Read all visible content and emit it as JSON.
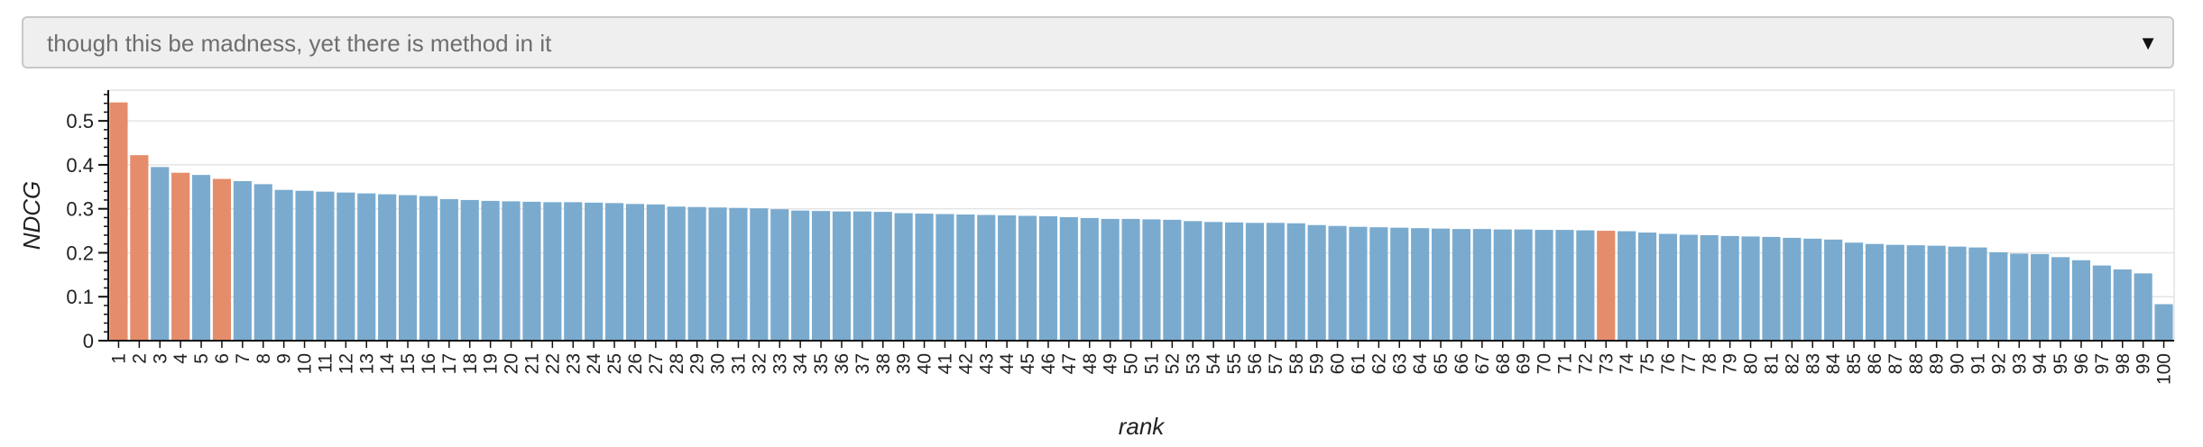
{
  "dropdown": {
    "selected": "though this be madness, yet there is method in it",
    "arrow": "▼"
  },
  "chart_data": {
    "type": "bar",
    "xlabel": "rank",
    "ylabel": "NDCG",
    "ylim": [
      0,
      0.57
    ],
    "yticks": [
      0,
      0.1,
      0.2,
      0.3,
      0.4,
      0.5
    ],
    "ytick_labels": [
      "0",
      "0.1",
      "0.2",
      "0.3",
      "0.4",
      "0.5"
    ],
    "grid": true,
    "colors": {
      "default": "#7aabcf",
      "highlight": "#e58c6a"
    },
    "highlighted_ranks": [
      1,
      2,
      4,
      6,
      73
    ],
    "categories": [
      "1",
      "2",
      "3",
      "4",
      "5",
      "6",
      "7",
      "8",
      "9",
      "10",
      "11",
      "12",
      "13",
      "14",
      "15",
      "16",
      "17",
      "18",
      "19",
      "20",
      "21",
      "22",
      "23",
      "24",
      "25",
      "26",
      "27",
      "28",
      "29",
      "30",
      "31",
      "32",
      "33",
      "34",
      "35",
      "36",
      "37",
      "38",
      "39",
      "40",
      "41",
      "42",
      "43",
      "44",
      "45",
      "46",
      "47",
      "48",
      "49",
      "50",
      "51",
      "52",
      "53",
      "54",
      "55",
      "56",
      "57",
      "58",
      "59",
      "60",
      "61",
      "62",
      "63",
      "64",
      "65",
      "66",
      "67",
      "68",
      "69",
      "70",
      "71",
      "72",
      "73",
      "74",
      "75",
      "76",
      "77",
      "78",
      "79",
      "80",
      "81",
      "82",
      "83",
      "84",
      "85",
      "86",
      "87",
      "88",
      "89",
      "90",
      "91",
      "92",
      "93",
      "94",
      "95",
      "96",
      "97",
      "98",
      "99",
      "100"
    ],
    "values": [
      0.542,
      0.422,
      0.395,
      0.382,
      0.377,
      0.368,
      0.363,
      0.356,
      0.343,
      0.341,
      0.339,
      0.337,
      0.335,
      0.333,
      0.331,
      0.329,
      0.322,
      0.32,
      0.318,
      0.317,
      0.316,
      0.315,
      0.315,
      0.314,
      0.313,
      0.311,
      0.31,
      0.305,
      0.304,
      0.303,
      0.302,
      0.301,
      0.299,
      0.296,
      0.295,
      0.294,
      0.294,
      0.293,
      0.29,
      0.289,
      0.288,
      0.287,
      0.286,
      0.285,
      0.284,
      0.283,
      0.281,
      0.279,
      0.277,
      0.277,
      0.276,
      0.275,
      0.272,
      0.27,
      0.269,
      0.268,
      0.268,
      0.267,
      0.263,
      0.261,
      0.259,
      0.258,
      0.257,
      0.256,
      0.255,
      0.254,
      0.254,
      0.253,
      0.253,
      0.252,
      0.252,
      0.251,
      0.25,
      0.249,
      0.246,
      0.243,
      0.241,
      0.24,
      0.238,
      0.237,
      0.236,
      0.234,
      0.232,
      0.23,
      0.223,
      0.22,
      0.218,
      0.217,
      0.216,
      0.214,
      0.212,
      0.201,
      0.198,
      0.197,
      0.19,
      0.183,
      0.171,
      0.162,
      0.153,
      0.083
    ]
  }
}
